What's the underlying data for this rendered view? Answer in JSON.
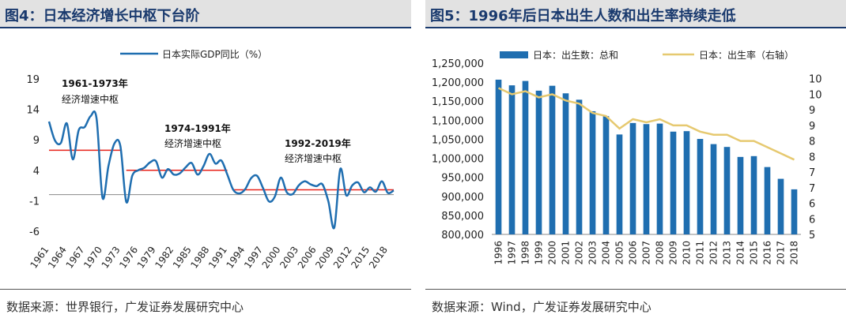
{
  "left": {
    "title": "图4：日本经济增长中枢下台阶",
    "source": "数据来源：世界银行，广发证券发展研究中心",
    "annotations": [
      "1961-1973年",
      "经济增速中枢",
      "1974-1991年",
      "经济增速中枢",
      "1992-2019年",
      "经济增速中枢"
    ]
  },
  "right": {
    "title": "图5：1996年后日本出生人数和出生率持续走低",
    "source": "数据来源：Wind，广发证券发展研究中心"
  },
  "colors": {
    "line": "#1f6eb0",
    "bar": "#1f6eb0",
    "rate_line": "#e6c970",
    "center_line": "#e8221a",
    "title": "#1a3a6e"
  },
  "chart_data": [
    {
      "type": "line",
      "legend": "日本实际GDP同比（%）",
      "x_ticks": [
        "1961",
        "1964",
        "1967",
        "1970",
        "1973",
        "1976",
        "1979",
        "1982",
        "1985",
        "1988",
        "1991",
        "1994",
        "1997",
        "2000",
        "2003",
        "2006",
        "2009",
        "2012",
        "2015",
        "2018"
      ],
      "y_ticks": [
        "19",
        "14",
        "9",
        "4",
        "-1",
        "-6"
      ],
      "ylim": [
        -6,
        19
      ],
      "xlim": [
        1961,
        2019
      ],
      "series": [
        {
          "x": [
            1961,
            1962,
            1963,
            1964,
            1965,
            1966,
            1967,
            1968,
            1969,
            1970,
            1971,
            1972,
            1973,
            1974,
            1975,
            1976,
            1977,
            1978,
            1979,
            1980,
            1981,
            1982,
            1983,
            1984,
            1985,
            1986,
            1987,
            1988,
            1989,
            1990,
            1991,
            1992,
            1993,
            1994,
            1995,
            1996,
            1997,
            1998,
            1999,
            2000,
            2001,
            2002,
            2003,
            2004,
            2005,
            2006,
            2007,
            2008,
            2009,
            2010,
            2011,
            2012,
            2013,
            2014,
            2015,
            2016,
            2017,
            2018,
            2019
          ],
          "y": [
            12,
            8.9,
            8.5,
            11.7,
            5.8,
            10.6,
            11.1,
            12.9,
            12.5,
            -0.5,
            4.7,
            8.4,
            8.0,
            -1.2,
            3.1,
            4.0,
            4.4,
            5.3,
            5.5,
            2.8,
            4.2,
            3.3,
            3.5,
            4.5,
            5.2,
            3.3,
            4.7,
            6.7,
            5.1,
            5.6,
            3.3,
            0.8,
            0.2,
            0.9,
            2.7,
            3.1,
            1.1,
            -1.1,
            -0.3,
            2.8,
            0.4,
            0.1,
            1.5,
            2.2,
            1.7,
            1.4,
            1.7,
            -1.1,
            -5.4,
            4.2,
            -0.1,
            1.5,
            2.0,
            0.4,
            1.2,
            0.5,
            2.2,
            0.3,
            0.7
          ]
        }
      ],
      "centers": [
        {
          "from": 1961,
          "to": 1973,
          "value": 7.3
        },
        {
          "from": 1974,
          "to": 1991,
          "value": 4.0
        },
        {
          "from": 1992,
          "to": 2019,
          "value": 0.8
        }
      ]
    },
    {
      "type": "bar",
      "categories": [
        "1996",
        "1997",
        "1998",
        "1999",
        "2000",
        "2001",
        "2002",
        "2003",
        "2004",
        "2005",
        "2006",
        "2007",
        "2008",
        "2009",
        "2010",
        "2011",
        "2012",
        "2013",
        "2014",
        "2015",
        "2016",
        "2017",
        "2018"
      ],
      "series": [
        {
          "name": "日本：出生数：总和",
          "values": [
            1206555,
            1191665,
            1203147,
            1177669,
            1190547,
            1170662,
            1153855,
            1123610,
            1110721,
            1062530,
            1092674,
            1089818,
            1091156,
            1070035,
            1071304,
            1050806,
            1037231,
            1029816,
            1003539,
            1005677,
            976978,
            946065,
            918400
          ]
        },
        {
          "name": "日本：出生率（右轴）",
          "values": [
            9.7,
            9.5,
            9.6,
            9.4,
            9.5,
            9.3,
            9.2,
            8.9,
            8.8,
            8.4,
            8.7,
            8.6,
            8.7,
            8.5,
            8.5,
            8.3,
            8.2,
            8.2,
            8.0,
            8.0,
            7.8,
            7.6,
            7.4
          ]
        }
      ],
      "y_ticks": [
        "1,250,000",
        "1,200,000",
        "1,150,000",
        "1,100,000",
        "1,050,000",
        "1,000,000",
        "950,000",
        "900,000",
        "850,000",
        "800,000"
      ],
      "y2_ticks": [
        "10",
        "10",
        "9",
        "9",
        "8",
        "8",
        "7",
        "7",
        "6",
        "6",
        "5"
      ],
      "ylim": [
        800000,
        1250000
      ],
      "y2lim": [
        5,
        10.5
      ]
    }
  ]
}
